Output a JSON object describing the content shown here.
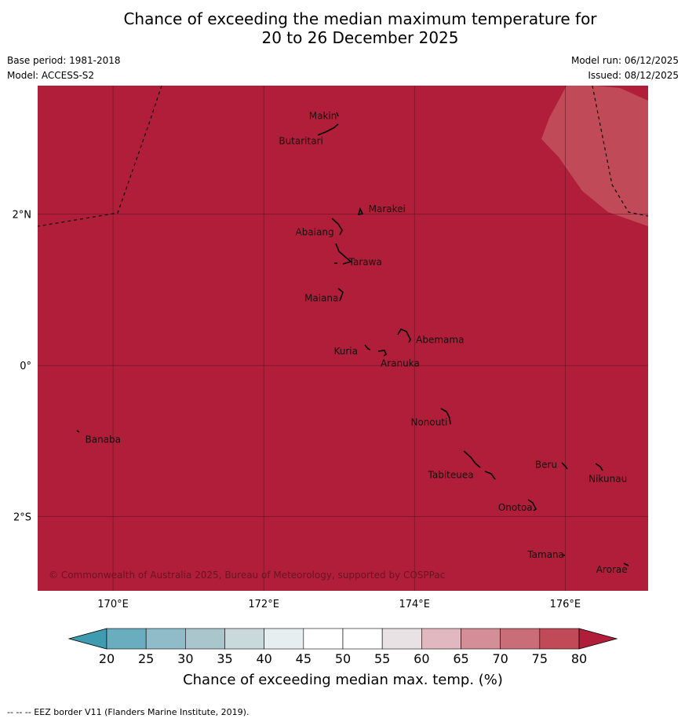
{
  "title": {
    "line1": "Chance of exceeding the median maximum temperature for",
    "line2": "20 to 26 December 2025"
  },
  "meta": {
    "base_period": "Base period: 1981-2018",
    "model": "Model: ACCESS-S2",
    "model_run": "Model run: 06/12/2025",
    "issued": "Issued: 08/12/2025"
  },
  "map": {
    "lon_range": [
      169.0,
      177.1
    ],
    "lat_range": [
      -2.98,
      3.7
    ],
    "lat_ticks": [
      {
        "value": 2,
        "label": "2°N"
      },
      {
        "value": 0,
        "label": "0°"
      },
      {
        "value": -2,
        "label": "2°S"
      }
    ],
    "lon_ticks": [
      {
        "value": 170,
        "label": "170°E"
      },
      {
        "value": 172,
        "label": "172°E"
      },
      {
        "value": 174,
        "label": "174°E"
      },
      {
        "value": 176,
        "label": "176°E"
      }
    ],
    "base_color": "#b01e39",
    "secondary_color": "#c04a58",
    "places": [
      {
        "name": "Makin",
        "lon": 172.6,
        "lat": 3.3
      },
      {
        "name": "Butaritari",
        "lon": 172.2,
        "lat": 2.97
      },
      {
        "name": "Marakei",
        "lon": 173.39,
        "lat": 2.07
      },
      {
        "name": "Abaiang",
        "lon": 172.42,
        "lat": 1.76
      },
      {
        "name": "Tarawa",
        "lon": 173.13,
        "lat": 1.37
      },
      {
        "name": "Maiana",
        "lon": 172.54,
        "lat": 0.89
      },
      {
        "name": "Abemama",
        "lon": 174.02,
        "lat": 0.34
      },
      {
        "name": "Kuria",
        "lon": 172.93,
        "lat": 0.19
      },
      {
        "name": "Aranuka",
        "lon": 173.55,
        "lat": 0.03
      },
      {
        "name": "Nonouti",
        "lon": 173.95,
        "lat": -0.75
      },
      {
        "name": "Banaba",
        "lon": 169.63,
        "lat": -0.98
      },
      {
        "name": "Beru",
        "lon": 175.6,
        "lat": -1.31
      },
      {
        "name": "Tabiteuea",
        "lon": 174.18,
        "lat": -1.45
      },
      {
        "name": "Nikunau",
        "lon": 176.31,
        "lat": -1.5
      },
      {
        "name": "Onotoa",
        "lon": 175.11,
        "lat": -1.88
      },
      {
        "name": "Tamana",
        "lon": 175.5,
        "lat": -2.5
      },
      {
        "name": "Arorae",
        "lon": 176.41,
        "lat": -2.7
      }
    ],
    "copyright": "© Commonwealth of Australia 2025, Bureau of Meteorology, supported by COSPPac"
  },
  "colorbar": {
    "ticks": [
      "20",
      "25",
      "30",
      "35",
      "40",
      "45",
      "50",
      "55",
      "60",
      "65",
      "70",
      "75",
      "80"
    ],
    "colors": [
      "#3f9cb0",
      "#6aadbe",
      "#8fbcc8",
      "#a9c6cd",
      "#c9d9dc",
      "#e7eef0",
      "#ffffff",
      "#ffffff",
      "#e9e2e4",
      "#e2b8c0",
      "#d48e98",
      "#c96d79",
      "#c04a58",
      "#b01e39"
    ],
    "label": "Chance of exceeding median max. temp. (%)"
  },
  "footnote": "--  --  -- EEZ border V11 (Flanders Marine Institute, 2019)."
}
